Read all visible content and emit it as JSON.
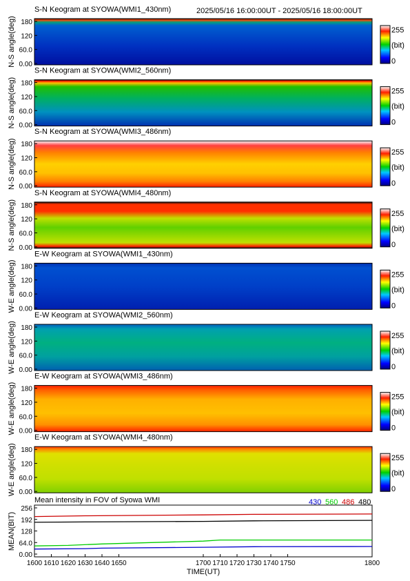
{
  "header": {
    "time_range": "2025/05/16 16:00:00UT - 2025/05/16 18:00:00UT"
  },
  "colorbar": {
    "max_label": "255",
    "unit_label": "(bit)",
    "min_label": "0"
  },
  "panels": [
    {
      "title": "S-N Keogram at SYOWA(WMI1_430nm)",
      "ylabel": "N-S angle(deg)",
      "profile": "sn430"
    },
    {
      "title": "S-N Keogram at SYOWA(WMI2_560nm)",
      "ylabel": "N-S angle(deg)",
      "profile": "sn560"
    },
    {
      "title": "S-N Keogram at SYOWA(WMI3_486nm)",
      "ylabel": "N-S angle(deg)",
      "profile": "sn486"
    },
    {
      "title": "S-N Keogram at SYOWA(WMI4_480nm)",
      "ylabel": "N-S angle(deg)",
      "profile": "sn480"
    },
    {
      "title": "E-W Keogram at SYOWA(WMI1_430nm)",
      "ylabel": "W-E angle(deg)",
      "profile": "ew430"
    },
    {
      "title": "E-W Keogram at SYOWA(WMI2_560nm)",
      "ylabel": "W-E angle(deg)",
      "profile": "ew560"
    },
    {
      "title": "E-W Keogram at SYOWA(WMI3_486nm)",
      "ylabel": "W-E angle(deg)",
      "profile": "ew486"
    },
    {
      "title": "E-W Keogram at SYOWA(WMI4_480nm)",
      "ylabel": "W-E angle(deg)",
      "profile": "ew480"
    }
  ],
  "keogram_yticks": [
    "180",
    "120",
    "60.0",
    "0.00"
  ],
  "chart_data": {
    "type": "line",
    "title": "Mean intensity in FOV of Syowa WMI",
    "xlabel": "TIME(UT)",
    "ylabel": "MEAN(BIT)",
    "xlim": [
      1600,
      1800
    ],
    "ylim": [
      0,
      256
    ],
    "xticks": [
      "1600",
      "1610",
      "1620",
      "1630",
      "1640",
      "1650",
      "1700",
      "1710",
      "1720",
      "1730",
      "1740",
      "1750",
      "1800"
    ],
    "yticks": [
      "256",
      "192",
      "128",
      "64.0",
      "0.00"
    ],
    "legend": [
      {
        "name": "430",
        "color": "#0000cc"
      },
      {
        "name": "560",
        "color": "#00cc00"
      },
      {
        "name": "486",
        "color": "#cc0000"
      },
      {
        "name": "480",
        "color": "#000000"
      }
    ],
    "series": [
      {
        "name": "430",
        "color": "#0000cc",
        "x": [
          1600,
          1630,
          1640,
          1700,
          1730,
          1800
        ],
        "values": [
          28,
          30,
          33,
          38,
          41,
          42
        ]
      },
      {
        "name": "560",
        "color": "#00cc00",
        "x": [
          1600,
          1620,
          1640,
          1700,
          1710,
          1730,
          1800
        ],
        "values": [
          45,
          48,
          56,
          72,
          78,
          78,
          78
        ]
      },
      {
        "name": "486",
        "color": "#cc0000",
        "x": [
          1600,
          1630,
          1700,
          1730,
          1800
        ],
        "values": [
          208,
          212,
          217,
          220,
          222
        ]
      },
      {
        "name": "480",
        "color": "#000000",
        "x": [
          1600,
          1630,
          1700,
          1730,
          1800
        ],
        "values": [
          176,
          178,
          181,
          184,
          187
        ]
      }
    ]
  }
}
